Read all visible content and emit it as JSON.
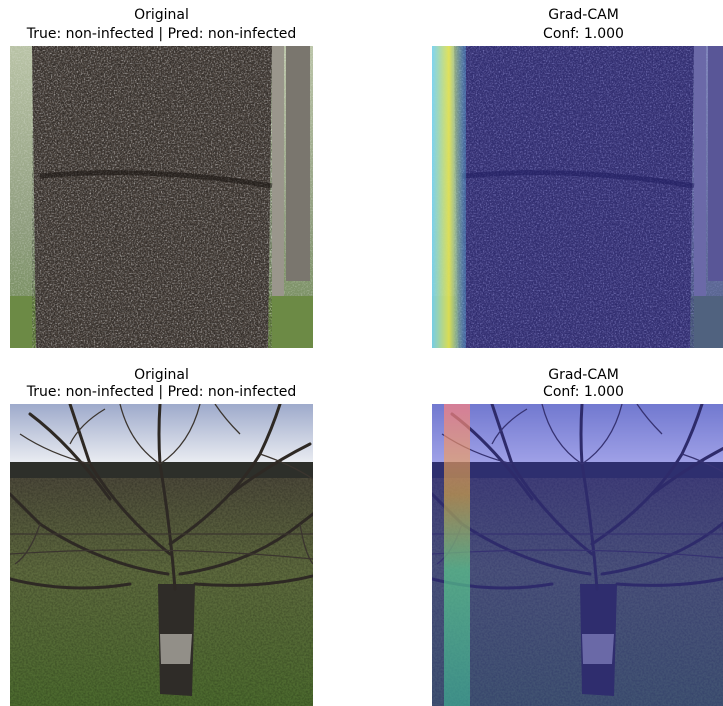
{
  "panels": [
    {
      "title": "Original",
      "subtitle": "True: non-infected | Pred: non-infected"
    },
    {
      "title": "Grad-CAM",
      "subtitle": "Conf: 1.000"
    },
    {
      "title": "Original",
      "subtitle": "True: non-infected | Pred: non-infected"
    },
    {
      "title": "Grad-CAM",
      "subtitle": "Conf: 1.000"
    }
  ]
}
